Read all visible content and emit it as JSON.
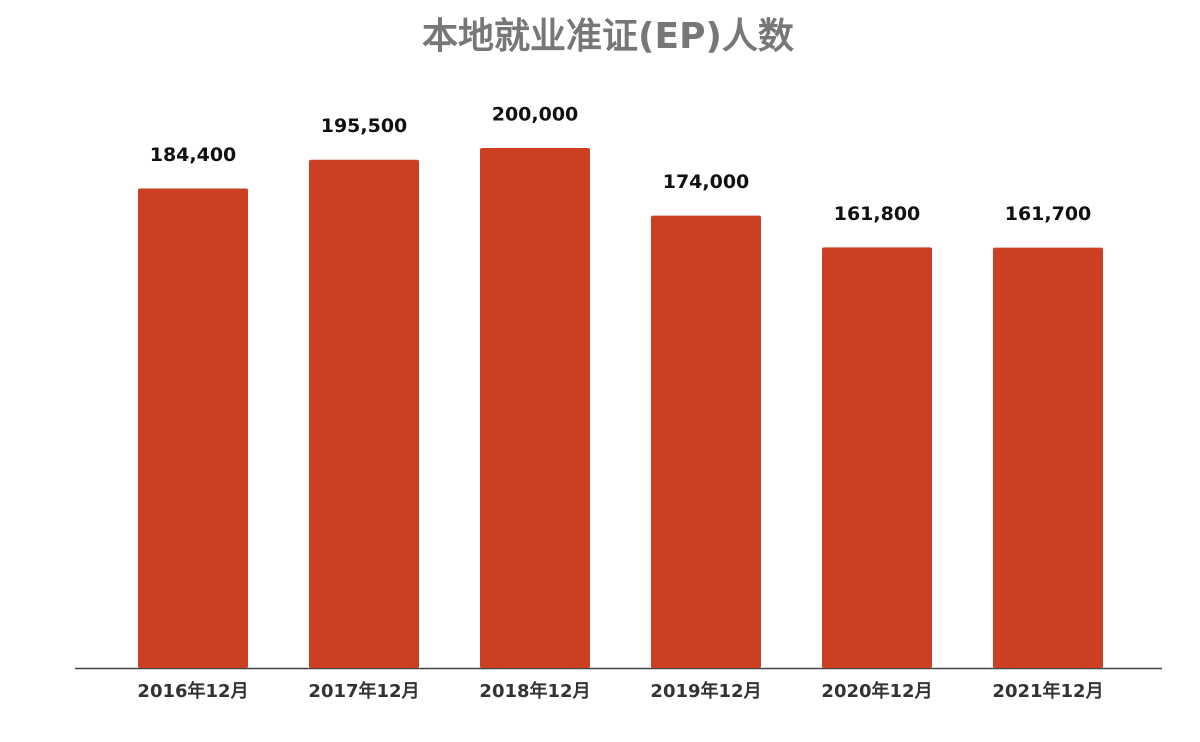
{
  "chart_data": {
    "type": "bar",
    "title": "本地就业准证(EP)人数",
    "categories": [
      "2016年12月",
      "2017年12月",
      "2018年12月",
      "2019年12月",
      "2020年12月",
      "2021年12月"
    ],
    "values": [
      184400,
      195500,
      200000,
      174000,
      161800,
      161700
    ],
    "value_labels": [
      "184,400",
      "195,500",
      "200,000",
      "174,000",
      "161,800",
      "161,700"
    ],
    "color": "#cc3f22"
  }
}
